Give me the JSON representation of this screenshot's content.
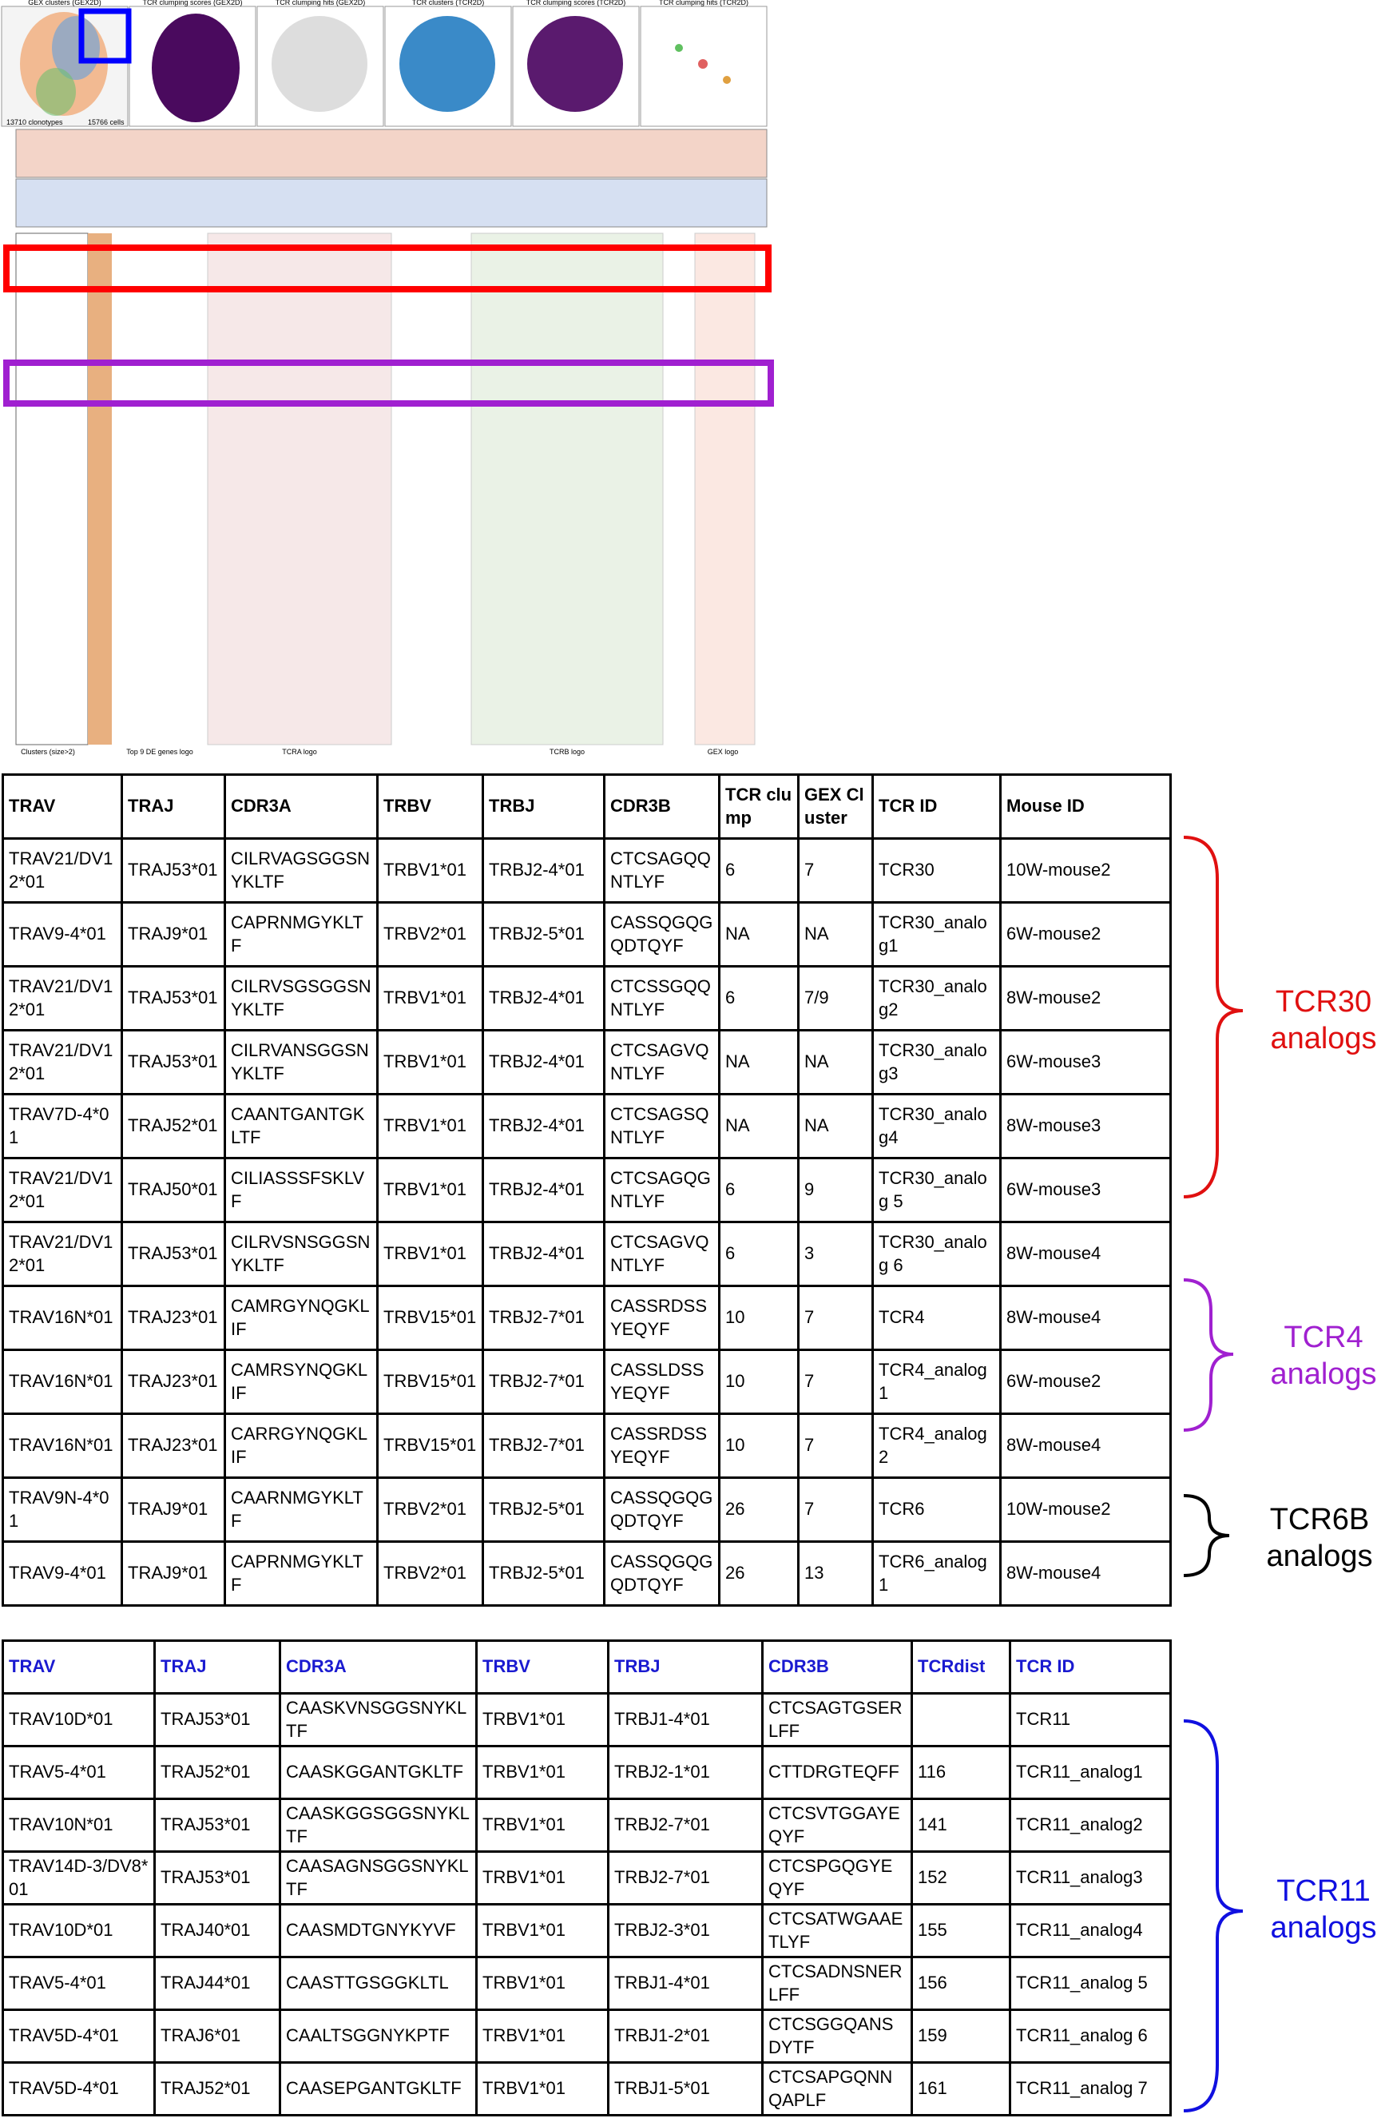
{
  "figure": {
    "panel_titles": [
      "GEX clusters (GEX2D)",
      "TCR clumping scores (GEX2D)",
      "TCR clumping hits (GEX2D)",
      "TCR clusters (TCR2D)",
      "TCR clumping scores (TCR2D)",
      "TCR clumping hits (TCR2D)"
    ],
    "clonotypes": "13710 clonotypes",
    "cells": "15766 cells",
    "footer_labels": [
      "Clusters (size>2)",
      "Top 9 DE genes logo",
      "TCRA logo",
      "TCRB logo",
      "GEX logo"
    ]
  },
  "table1": {
    "headers": [
      "TRAV",
      "TRAJ",
      "CDR3A",
      "TRBV",
      "TRBJ",
      "CDR3B",
      "TCR clump",
      "GEX Cluster",
      "TCR ID",
      "Mouse ID"
    ],
    "rows": [
      [
        "TRAV21/DV12*01",
        "TRAJ53*01",
        "CILRVAGSGGSNYKLTF",
        "TRBV1*01",
        "TRBJ2-4*01",
        "CTCSAGQQNTLYF",
        6,
        7,
        "TCR30",
        "10W-mouse2"
      ],
      [
        "TRAV9-4*01",
        "TRAJ9*01",
        "CAPRNMGYKLTF",
        "TRBV2*01",
        "TRBJ2-5*01",
        "CASSQGQGQDTQYF",
        "NA",
        "NA",
        "TCR30_analog1",
        "6W-mouse2"
      ],
      [
        "TRAV21/DV12*01",
        "TRAJ53*01",
        "CILRVSGSGGSNYKLTF",
        "TRBV1*01",
        "TRBJ2-4*01",
        "CTCSSGQQNTLYF",
        6,
        "7/9",
        "TCR30_analog2",
        "8W-mouse2"
      ],
      [
        "TRAV21/DV12*01",
        "TRAJ53*01",
        "CILRVANSGGSNYKLTF",
        "TRBV1*01",
        "TRBJ2-4*01",
        "CTCSAGVQNTLYF",
        "NA",
        "NA",
        "TCR30_analog3",
        "6W-mouse3"
      ],
      [
        "TRAV7D-4*01",
        "TRAJ52*01",
        "CAANTGANTGKLTF",
        "TRBV1*01",
        "TRBJ2-4*01",
        "CTCSAGSQNTLYF",
        "NA",
        "NA",
        "TCR30_analog4",
        "8W-mouse3"
      ],
      [
        "TRAV21/DV12*01",
        "TRAJ50*01",
        "CILIASSSFSKLVF",
        "TRBV1*01",
        "TRBJ2-4*01",
        "CTCSAGQGNTLYF",
        6,
        9,
        "TCR30_analog 5",
        "6W-mouse3"
      ],
      [
        "TRAV21/DV12*01",
        "TRAJ53*01",
        "CILRVSNSGGSNYKLTF",
        "TRBV1*01",
        "TRBJ2-4*01",
        "CTCSAGVQNTLYF",
        6,
        3,
        "TCR30_analog 6",
        "8W-mouse4"
      ],
      [
        "TRAV16N*01",
        "TRAJ23*01",
        "CAMRGYNQGKLIF",
        "TRBV15*01",
        "TRBJ2-7*01",
        "CASSRDSSYEQYF",
        10,
        7,
        "TCR4",
        "8W-mouse4"
      ],
      [
        "TRAV16N*01",
        "TRAJ23*01",
        "CAMRSYNQGKLIF",
        "TRBV15*01",
        "TRBJ2-7*01",
        "CASSLDSSYEQYF",
        10,
        7,
        "TCR4_analog1",
        "6W-mouse2"
      ],
      [
        "TRAV16N*01",
        "TRAJ23*01",
        "CARRGYNQGKLIF",
        "TRBV15*01",
        "TRBJ2-7*01",
        "CASSRDSSYEQYF",
        10,
        7,
        "TCR4_analog2",
        "8W-mouse4"
      ],
      [
        "TRAV9N-4*01",
        "TRAJ9*01",
        "CAARNMGYKLTF",
        "TRBV2*01",
        "TRBJ2-5*01",
        "CASSQGQGQDTQYF",
        26,
        7,
        "TCR6",
        "10W-mouse2"
      ],
      [
        "TRAV9-4*01",
        "TRAJ9*01",
        "CAPRNMGYKLTF",
        "TRBV2*01",
        "TRBJ2-5*01",
        "CASSQGQGQDTQYF",
        26,
        13,
        "TCR6_analog1",
        "8W-mouse4"
      ]
    ]
  },
  "table2": {
    "headers": [
      "TRAV",
      "TRAJ",
      "CDR3A",
      "TRBV",
      "TRBJ",
      "CDR3B",
      "TCRdist",
      "TCR ID"
    ],
    "rows": [
      [
        "TRAV10D*01",
        "TRAJ53*01",
        "CAASKVNSGGSNYKLTF",
        "TRBV1*01",
        "TRBJ1-4*01",
        "CTCSAGTGSERLFF",
        null,
        "TCR11"
      ],
      [
        "TRAV5-4*01",
        "TRAJ52*01",
        "CAASKGGANTGKLTF",
        "TRBV1*01",
        "TRBJ2-1*01",
        "CTTDRGTEQFF",
        116,
        "TCR11_analog1"
      ],
      [
        "TRAV10N*01",
        "TRAJ53*01",
        "CAASKGGSGGSNYKLTF",
        "TRBV1*01",
        "TRBJ2-7*01",
        "CTCSVTGGAYEQYF",
        141,
        "TCR11_analog2"
      ],
      [
        "TRAV14D-3/DV8*01",
        "TRAJ53*01",
        "CAASAGNSGGSNYKLTF",
        "TRBV1*01",
        "TRBJ2-7*01",
        "CTCSPGQGYEQYF",
        152,
        "TCR11_analog3"
      ],
      [
        "TRAV10D*01",
        "TRAJ40*01",
        "CAASMDTGNYKYVF",
        "TRBV1*01",
        "TRBJ2-3*01",
        "CTCSATWGAAETLYF",
        155,
        "TCR11_analog4"
      ],
      [
        "TRAV5-4*01",
        "TRAJ44*01",
        "CAASTTGSGGKLTL",
        "TRBV1*01",
        "TRBJ1-4*01",
        "CTCSADNSNERLFF",
        156,
        "TCR11_analog 5"
      ],
      [
        "TRAV5D-4*01",
        "TRAJ6*01",
        "CAALTSGGNYKPTF",
        "TRBV1*01",
        "TRBJ1-2*01",
        "CTCSGGQANSDYTF",
        159,
        "TCR11_analog 6"
      ],
      [
        "TRAV5D-4*01",
        "TRAJ52*01",
        "CAASEPGANTGKLTF",
        "TRBV1*01",
        "TRBJ1-5*01",
        "CTCSAPGQNNQAPLF",
        161,
        "TCR11_analog 7"
      ]
    ]
  },
  "brackets": [
    "TCR30 analogs",
    "TCR4 analogs",
    "TCR6B analogs",
    "TCR11 analogs"
  ]
}
